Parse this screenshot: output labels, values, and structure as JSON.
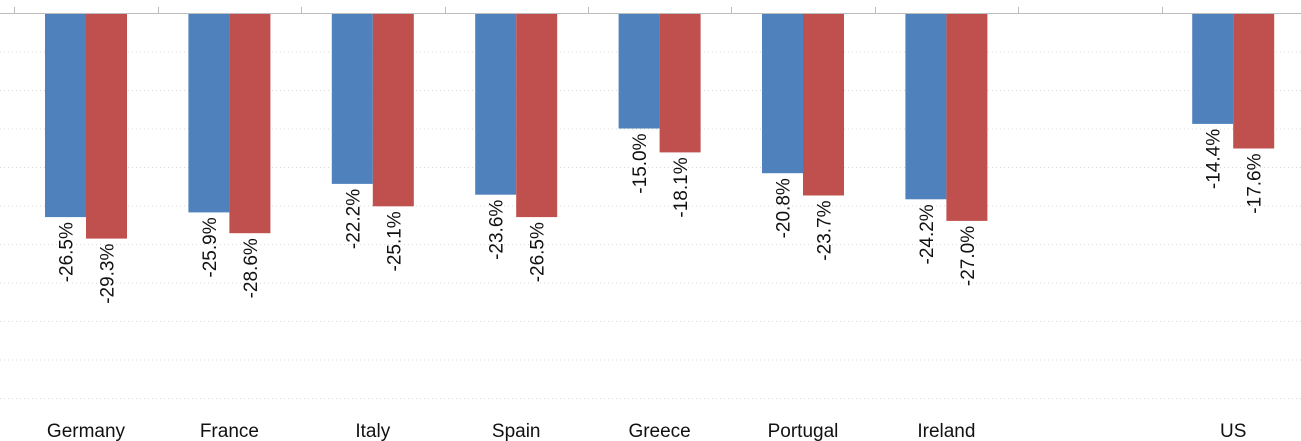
{
  "chart_data": {
    "type": "bar",
    "categories": [
      "Germany",
      "France",
      "Italy",
      "Spain",
      "Greece",
      "Portugal",
      "Ireland",
      "",
      "US"
    ],
    "series": [
      {
        "color": "#4f81bd",
        "values": [
          -26.5,
          -25.9,
          -22.2,
          -23.6,
          -15.0,
          -20.8,
          -24.2,
          null,
          -14.4
        ],
        "labels": [
          "-26.5%",
          "-25.9%",
          "-22.2%",
          "-23.6%",
          "-15.0%",
          "-20.8%",
          "-24.2%",
          "",
          "-14.4%"
        ]
      },
      {
        "color": "#c0504d",
        "values": [
          -29.3,
          -28.6,
          -25.1,
          -26.5,
          -18.1,
          -23.7,
          -27.0,
          null,
          -17.6
        ],
        "labels": [
          "-29.3%",
          "-28.6%",
          "-25.1%",
          "-26.5%",
          "-18.1%",
          "-23.7%",
          "-27.0%",
          "",
          "-17.6%"
        ]
      }
    ],
    "ylim": [
      -50,
      0
    ],
    "grid": true,
    "legend": "none"
  }
}
